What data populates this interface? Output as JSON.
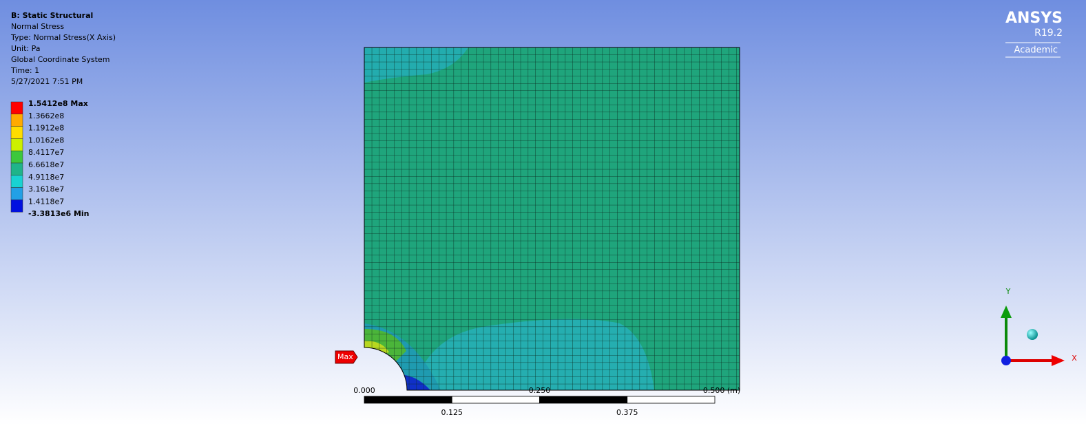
{
  "header": {
    "title": "B: Static Structural",
    "lines": [
      "Normal Stress",
      "Type: Normal Stress(X Axis)",
      "Unit: Pa",
      "Global Coordinate System",
      "Time: 1",
      "5/27/2021 7:51 PM"
    ]
  },
  "legend": {
    "labels": [
      "1.5412e8 Max",
      "1.3662e8",
      "1.1912e8",
      "1.0162e8",
      "8.4117e7",
      "6.6618e7",
      "4.9118e7",
      "3.1618e7",
      "1.4118e7",
      "-3.3813e6 Min"
    ],
    "colors": [
      "#ff0000",
      "#ffaa00",
      "#ffdd00",
      "#ccf000",
      "#3cc83c",
      "#1fb48a",
      "#19d2d2",
      "#22a0e6",
      "#0010e0"
    ]
  },
  "brand": {
    "name": "ANSYS",
    "version": "R19.2",
    "edition": "Academic"
  },
  "probe": "Max",
  "scale": {
    "top_labels": [
      "0.000",
      "0.250",
      "0.500 (m)"
    ],
    "bottom_labels": [
      "0.125",
      "0.375"
    ]
  },
  "triad": {
    "y": "Y",
    "x": "X"
  }
}
